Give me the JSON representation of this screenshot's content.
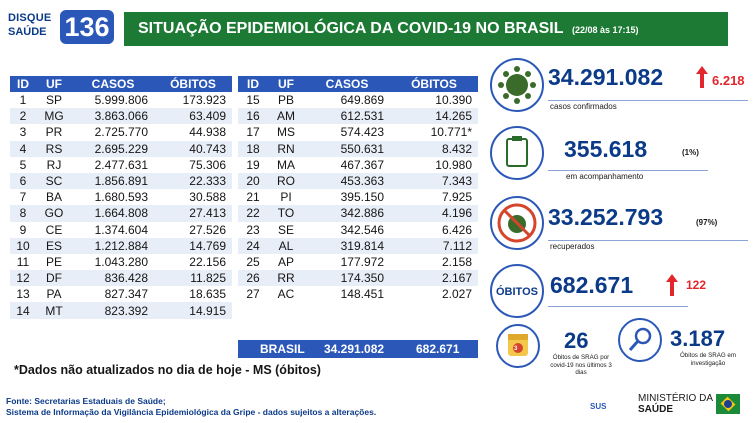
{
  "logo": {
    "line1": "DISQUE",
    "line2": "SAÚDE",
    "number": "136"
  },
  "header": {
    "title": "SITUAÇÃO EPIDEMIOLÓGICA DA COVID-19 NO BRASIL",
    "date": "(22/08 às 17:15)"
  },
  "table_headers": [
    "ID",
    "UF",
    "CASOS",
    "ÓBITOS"
  ],
  "table_left": [
    [
      "1",
      "SP",
      "5.999.806",
      "173.923"
    ],
    [
      "2",
      "MG",
      "3.863.066",
      "63.409"
    ],
    [
      "3",
      "PR",
      "2.725.770",
      "44.938"
    ],
    [
      "4",
      "RS",
      "2.695.229",
      "40.743"
    ],
    [
      "5",
      "RJ",
      "2.477.631",
      "75.306"
    ],
    [
      "6",
      "SC",
      "1.856.891",
      "22.333"
    ],
    [
      "7",
      "BA",
      "1.680.593",
      "30.588"
    ],
    [
      "8",
      "GO",
      "1.664.808",
      "27.413"
    ],
    [
      "9",
      "CE",
      "1.374.604",
      "27.526"
    ],
    [
      "10",
      "ES",
      "1.212.884",
      "14.769"
    ],
    [
      "11",
      "PE",
      "1.043.280",
      "22.156"
    ],
    [
      "12",
      "DF",
      "836.428",
      "11.825"
    ],
    [
      "13",
      "PA",
      "827.347",
      "18.635"
    ],
    [
      "14",
      "MT",
      "823.392",
      "14.915"
    ]
  ],
  "table_right": [
    [
      "15",
      "PB",
      "649.869",
      "10.390"
    ],
    [
      "16",
      "AM",
      "612.531",
      "14.265"
    ],
    [
      "17",
      "MS",
      "574.423",
      "10.771*"
    ],
    [
      "18",
      "RN",
      "550.631",
      "8.432"
    ],
    [
      "19",
      "MA",
      "467.367",
      "10.980"
    ],
    [
      "20",
      "RO",
      "453.363",
      "7.343"
    ],
    [
      "21",
      "PI",
      "395.150",
      "7.925"
    ],
    [
      "22",
      "TO",
      "342.886",
      "4.196"
    ],
    [
      "23",
      "SE",
      "342.546",
      "6.426"
    ],
    [
      "24",
      "AL",
      "319.814",
      "7.112"
    ],
    [
      "25",
      "AP",
      "177.972",
      "2.158"
    ],
    [
      "26",
      "RR",
      "174.350",
      "2.167"
    ],
    [
      "27",
      "AC",
      "148.451",
      "2.027"
    ]
  ],
  "total": {
    "label": "BRASIL",
    "casos": "34.291.082",
    "obitos": "682.671"
  },
  "note": "*Dados não atualizados no dia de hoje - MS (óbitos)",
  "panel": {
    "confirmed": {
      "value": "34.291.082",
      "increase": "6.218",
      "label": "casos confirmados"
    },
    "monitoring": {
      "value": "355.618",
      "pct": "(1%)",
      "label": "em acompanhamento"
    },
    "recovered": {
      "value": "33.252.793",
      "pct": "(97%)",
      "label": "recuperados"
    },
    "deaths": {
      "badge": "ÓBITOS",
      "value": "682.671",
      "increase": "122"
    },
    "srag_30d": {
      "value": "26",
      "label": "Óbitos de SRAG por covid-19 nos últimos 3 dias",
      "badge": "3"
    },
    "srag_investigation": {
      "value": "3.187",
      "label": "Óbitos de SRAG em investigação"
    }
  },
  "footer": {
    "line1": "Fonte: Secretarias Estaduais de Saúde;",
    "line2": "Sistema de Informação da Vigilância Epidemiológica da Gripe - dados sujeitos a alterações."
  },
  "ministry": {
    "sus": "SUS",
    "line1": "MINISTÉRIO DA",
    "line2": "SAÚDE"
  },
  "colors": {
    "green": "#1d7a34",
    "blue": "#2b58b8",
    "navy": "#0b3a88",
    "red": "#e3262b"
  },
  "icons": [
    "virus-icon",
    "clipboard-icon",
    "no-virus-icon",
    "calendar-icon",
    "magnifier-icon",
    "arrow-up-icon"
  ]
}
